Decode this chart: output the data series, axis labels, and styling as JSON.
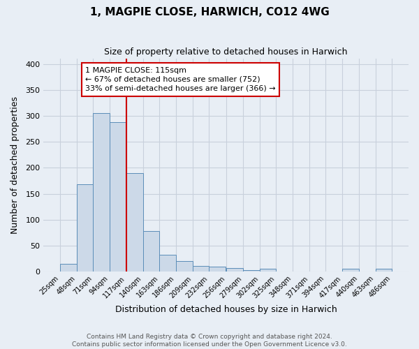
{
  "title": "1, MAGPIE CLOSE, HARWICH, CO12 4WG",
  "subtitle": "Size of property relative to detached houses in Harwich",
  "xlabel": "Distribution of detached houses by size in Harwich",
  "ylabel": "Number of detached properties",
  "bar_color": "#ccd9e8",
  "bar_edge_color": "#5b8db8",
  "background_color": "#e8eef5",
  "plot_bg_color": "#e8eef5",
  "grid_color": "#c8d0dc",
  "bins": [
    25,
    48,
    71,
    94,
    117,
    140,
    163,
    186,
    209,
    232,
    256,
    279,
    302,
    325,
    348,
    371,
    394,
    417,
    440,
    463,
    486
  ],
  "bin_labels": [
    "25sqm",
    "48sqm",
    "71sqm",
    "94sqm",
    "117sqm",
    "140sqm",
    "163sqm",
    "186sqm",
    "209sqm",
    "232sqm",
    "256sqm",
    "279sqm",
    "302sqm",
    "325sqm",
    "348sqm",
    "371sqm",
    "394sqm",
    "417sqm",
    "440sqm",
    "463sqm",
    "486sqm"
  ],
  "values": [
    15,
    168,
    306,
    288,
    190,
    78,
    32,
    20,
    10,
    9,
    6,
    3,
    5,
    0,
    0,
    0,
    0,
    5,
    0,
    5
  ],
  "vline_x": 117,
  "vline_color": "#cc0000",
  "annotation_line1": "1 MAGPIE CLOSE: 115sqm",
  "annotation_line2": "← 67% of detached houses are smaller (752)",
  "annotation_line3": "33% of semi-detached houses are larger (366) →",
  "annotation_box_color": "white",
  "annotation_box_edge": "#cc0000",
  "ylim": [
    0,
    410
  ],
  "yticks": [
    0,
    50,
    100,
    150,
    200,
    250,
    300,
    350,
    400
  ],
  "footer_line1": "Contains HM Land Registry data © Crown copyright and database right 2024.",
  "footer_line2": "Contains public sector information licensed under the Open Government Licence v3.0.",
  "title_fontsize": 11,
  "subtitle_fontsize": 9,
  "xlabel_fontsize": 9,
  "ylabel_fontsize": 9,
  "tick_fontsize": 7,
  "annot_fontsize": 8,
  "footer_fontsize": 6.5
}
